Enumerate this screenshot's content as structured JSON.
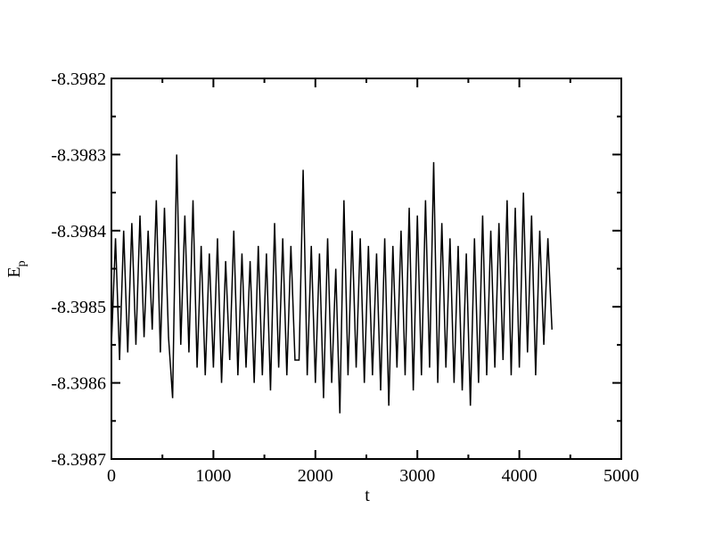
{
  "chart_data": {
    "type": "line",
    "xlabel": "t",
    "ylabel": "E",
    "ylabel_sub": "p",
    "color": "#000000",
    "x": [
      0,
      40,
      80,
      120,
      160,
      200,
      240,
      280,
      320,
      360,
      400,
      440,
      480,
      520,
      560,
      600,
      640,
      680,
      720,
      760,
      800,
      840,
      880,
      920,
      960,
      1000,
      1040,
      1080,
      1120,
      1160,
      1200,
      1240,
      1280,
      1320,
      1360,
      1400,
      1440,
      1480,
      1520,
      1560,
      1600,
      1640,
      1680,
      1720,
      1760,
      1800,
      1840,
      1880,
      1920,
      1960,
      2000,
      2040,
      2080,
      2120,
      2160,
      2200,
      2240,
      2280,
      2320,
      2360,
      2400,
      2440,
      2480,
      2520,
      2560,
      2600,
      2640,
      2680,
      2720,
      2760,
      2800,
      2840,
      2880,
      2920,
      2960,
      3000,
      3040,
      3080,
      3120,
      3160,
      3200,
      3240,
      3280,
      3320,
      3360,
      3400,
      3440,
      3480,
      3520,
      3560,
      3600,
      3640,
      3680,
      3720,
      3760,
      3800,
      3840,
      3880,
      3920,
      3960,
      4000,
      4040,
      4080,
      4120,
      4160,
      4200,
      4240,
      4280,
      4320
    ],
    "values": [
      -8.39855,
      -8.39841,
      -8.39857,
      -8.3984,
      -8.39856,
      -8.39839,
      -8.39855,
      -8.39838,
      -8.39854,
      -8.3984,
      -8.39853,
      -8.39836,
      -8.39856,
      -8.39837,
      -8.39854,
      -8.39862,
      -8.3983,
      -8.39855,
      -8.39838,
      -8.39856,
      -8.39836,
      -8.39858,
      -8.39842,
      -8.39859,
      -8.39843,
      -8.39858,
      -8.39841,
      -8.3986,
      -8.39844,
      -8.39857,
      -8.3984,
      -8.39859,
      -8.39843,
      -8.39858,
      -8.39844,
      -8.3986,
      -8.39842,
      -8.39859,
      -8.39843,
      -8.39861,
      -8.39839,
      -8.39858,
      -8.39841,
      -8.39859,
      -8.39842,
      -8.39857,
      -8.39857,
      -8.39832,
      -8.39859,
      -8.39842,
      -8.3986,
      -8.39843,
      -8.39862,
      -8.39841,
      -8.3986,
      -8.39845,
      -8.39864,
      -8.39836,
      -8.39859,
      -8.3984,
      -8.39858,
      -8.39841,
      -8.3986,
      -8.39842,
      -8.39859,
      -8.39843,
      -8.39861,
      -8.39841,
      -8.39863,
      -8.39842,
      -8.39858,
      -8.3984,
      -8.39859,
      -8.39837,
      -8.39861,
      -8.39838,
      -8.39859,
      -8.39836,
      -8.39858,
      -8.39831,
      -8.3986,
      -8.39839,
      -8.39858,
      -8.39841,
      -8.3986,
      -8.39842,
      -8.39861,
      -8.39843,
      -8.39863,
      -8.39841,
      -8.3986,
      -8.39838,
      -8.39859,
      -8.3984,
      -8.39858,
      -8.39839,
      -8.39857,
      -8.39836,
      -8.39859,
      -8.39837,
      -8.39858,
      -8.39835,
      -8.39856,
      -8.39838,
      -8.39859,
      -8.3984,
      -8.39855,
      -8.39841,
      -8.39853
    ],
    "xlim": [
      0,
      5000
    ],
    "xticks": [
      0,
      1000,
      2000,
      3000,
      4000,
      5000
    ],
    "xminorticks": [
      500,
      1500,
      2500,
      3500,
      4500
    ],
    "ylim": [
      -8.3987,
      -8.3982
    ],
    "yticks": [
      -8.3987,
      -8.3986,
      -8.3985,
      -8.3984,
      -8.3983,
      -8.3982
    ],
    "yminorticks": [
      -8.39865,
      -8.39855,
      -8.39845,
      -8.39835,
      -8.39825
    ]
  }
}
